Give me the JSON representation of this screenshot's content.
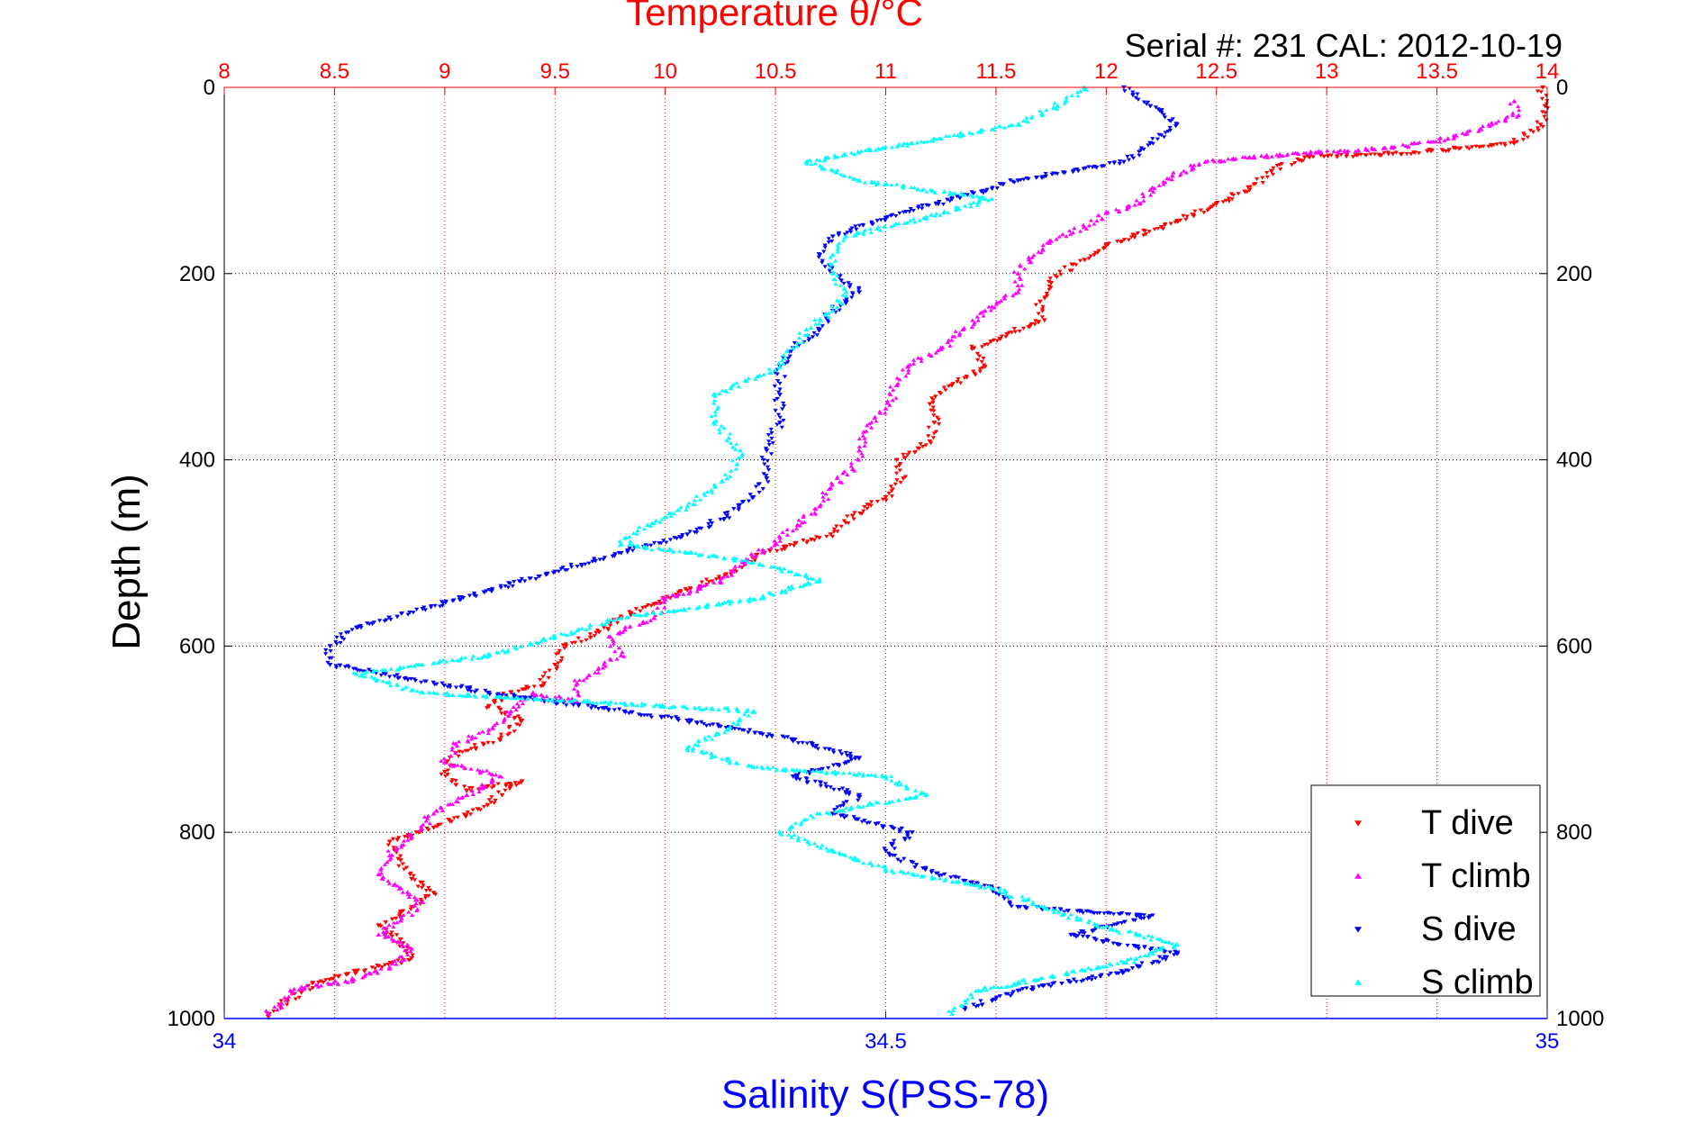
{
  "chart_data": {
    "type": "scatter",
    "title": "Temperature θ/°C",
    "subtitle": "Serial #: 231  CAL: 2012-10-19",
    "ylabel": "Depth (m)",
    "top_axis": {
      "label": "Temperature θ/°C",
      "range": [
        8,
        14
      ],
      "ticks": [
        "8",
        "8.5",
        "9",
        "9.5",
        "10",
        "10.5",
        "11",
        "11.5",
        "12",
        "12.5",
        "13",
        "13.5",
        "14"
      ],
      "color": "#ff0000"
    },
    "bottom_axis": {
      "label": "Salinity S(PSS-78)",
      "range": [
        34,
        35
      ],
      "ticks": [
        "34",
        "34.5",
        "35"
      ],
      "color": "#0000ff"
    },
    "y_axis": {
      "range": [
        0,
        1000
      ],
      "reversed": true,
      "ticks": [
        "0",
        "200",
        "400",
        "600",
        "800",
        "1000"
      ]
    },
    "grid": true,
    "legend_position": "bottom-right",
    "series": [
      {
        "name": "T dive",
        "axis": "temperature",
        "color": "#ff0000",
        "marker": "triangle-down",
        "points": [
          [
            13.98,
            0
          ],
          [
            13.99,
            20
          ],
          [
            13.97,
            40
          ],
          [
            13.85,
            60
          ],
          [
            13.4,
            70
          ],
          [
            12.9,
            75
          ],
          [
            12.75,
            90
          ],
          [
            12.65,
            110
          ],
          [
            12.5,
            125
          ],
          [
            12.25,
            150
          ],
          [
            12.0,
            170
          ],
          [
            11.85,
            190
          ],
          [
            11.75,
            210
          ],
          [
            11.7,
            230
          ],
          [
            11.72,
            250
          ],
          [
            11.55,
            265
          ],
          [
            11.4,
            280
          ],
          [
            11.45,
            300
          ],
          [
            11.3,
            320
          ],
          [
            11.2,
            340
          ],
          [
            11.22,
            360
          ],
          [
            11.2,
            380
          ],
          [
            11.05,
            400
          ],
          [
            11.08,
            420
          ],
          [
            11.0,
            440
          ],
          [
            10.85,
            460
          ],
          [
            10.75,
            480
          ],
          [
            10.45,
            500
          ],
          [
            10.3,
            520
          ],
          [
            10.1,
            540
          ],
          [
            9.95,
            555
          ],
          [
            9.8,
            570
          ],
          [
            9.7,
            585
          ],
          [
            9.55,
            600
          ],
          [
            9.5,
            620
          ],
          [
            9.45,
            640
          ],
          [
            9.3,
            650
          ],
          [
            9.2,
            665
          ],
          [
            9.35,
            680
          ],
          [
            9.25,
            700
          ],
          [
            9.05,
            715
          ],
          [
            9.0,
            735
          ],
          [
            9.1,
            755
          ],
          [
            9.35,
            745
          ],
          [
            9.15,
            775
          ],
          [
            8.95,
            795
          ],
          [
            8.75,
            810
          ],
          [
            8.8,
            830
          ],
          [
            8.85,
            850
          ],
          [
            8.95,
            865
          ],
          [
            8.85,
            880
          ],
          [
            8.7,
            900
          ],
          [
            8.8,
            915
          ],
          [
            8.85,
            935
          ],
          [
            8.6,
            950
          ],
          [
            8.4,
            962
          ],
          [
            8.35,
            972
          ],
          [
            8.25,
            985
          ],
          [
            8.2,
            998
          ]
        ]
      },
      {
        "name": "T climb",
        "axis": "temperature",
        "color": "#ff00ff",
        "marker": "triangle-up",
        "points": [
          [
            13.85,
            15
          ],
          [
            13.87,
            30
          ],
          [
            13.7,
            45
          ],
          [
            13.55,
            55
          ],
          [
            13.3,
            65
          ],
          [
            12.95,
            70
          ],
          [
            12.65,
            75
          ],
          [
            12.45,
            80
          ],
          [
            12.3,
            95
          ],
          [
            12.2,
            110
          ],
          [
            12.15,
            125
          ],
          [
            12.0,
            135
          ],
          [
            11.9,
            150
          ],
          [
            11.75,
            165
          ],
          [
            11.65,
            185
          ],
          [
            11.6,
            200
          ],
          [
            11.6,
            220
          ],
          [
            11.45,
            240
          ],
          [
            11.35,
            260
          ],
          [
            11.25,
            280
          ],
          [
            11.1,
            300
          ],
          [
            11.05,
            320
          ],
          [
            11.0,
            345
          ],
          [
            10.9,
            370
          ],
          [
            10.88,
            390
          ],
          [
            10.85,
            410
          ],
          [
            10.75,
            430
          ],
          [
            10.7,
            450
          ],
          [
            10.6,
            470
          ],
          [
            10.5,
            490
          ],
          [
            10.35,
            510
          ],
          [
            10.25,
            530
          ],
          [
            10.0,
            550
          ],
          [
            9.95,
            570
          ],
          [
            9.75,
            590
          ],
          [
            9.8,
            610
          ],
          [
            9.6,
            640
          ],
          [
            9.6,
            660
          ],
          [
            9.4,
            650
          ],
          [
            9.3,
            670
          ],
          [
            9.2,
            690
          ],
          [
            9.05,
            705
          ],
          [
            9.0,
            725
          ],
          [
            9.25,
            740
          ],
          [
            9.1,
            760
          ],
          [
            8.95,
            780
          ],
          [
            8.85,
            805
          ],
          [
            8.75,
            825
          ],
          [
            8.7,
            845
          ],
          [
            8.8,
            860
          ],
          [
            8.9,
            875
          ],
          [
            8.8,
            895
          ],
          [
            8.7,
            910
          ],
          [
            8.85,
            925
          ],
          [
            8.75,
            945
          ],
          [
            8.55,
            960
          ],
          [
            8.3,
            970
          ],
          [
            8.25,
            985
          ],
          [
            8.2,
            995
          ]
        ]
      },
      {
        "name": "S dive",
        "axis": "salinity",
        "color": "#0000ff",
        "marker": "triangle-down",
        "points": [
          [
            34.68,
            0
          ],
          [
            34.7,
            20
          ],
          [
            34.72,
            40
          ],
          [
            34.7,
            60
          ],
          [
            34.68,
            80
          ],
          [
            34.6,
            100
          ],
          [
            34.55,
            120
          ],
          [
            34.5,
            140
          ],
          [
            34.46,
            160
          ],
          [
            34.45,
            180
          ],
          [
            34.46,
            200
          ],
          [
            34.48,
            220
          ],
          [
            34.46,
            240
          ],
          [
            34.45,
            260
          ],
          [
            34.43,
            280
          ],
          [
            34.42,
            300
          ],
          [
            34.42,
            330
          ],
          [
            34.42,
            360
          ],
          [
            34.41,
            390
          ],
          [
            34.41,
            420
          ],
          [
            34.4,
            440
          ],
          [
            34.38,
            460
          ],
          [
            34.35,
            480
          ],
          [
            34.3,
            500
          ],
          [
            34.25,
            520
          ],
          [
            34.15,
            560
          ],
          [
            34.1,
            580
          ],
          [
            34.08,
            600
          ],
          [
            34.08,
            620
          ],
          [
            34.2,
            650
          ],
          [
            34.35,
            680
          ],
          [
            34.43,
            700
          ],
          [
            34.48,
            720
          ],
          [
            34.43,
            740
          ],
          [
            34.48,
            760
          ],
          [
            34.46,
            780
          ],
          [
            34.52,
            800
          ],
          [
            34.5,
            820
          ],
          [
            34.53,
            840
          ],
          [
            34.58,
            860
          ],
          [
            34.6,
            880
          ],
          [
            34.7,
            890
          ],
          [
            34.64,
            910
          ],
          [
            34.72,
            930
          ],
          [
            34.68,
            950
          ],
          [
            34.6,
            970
          ],
          [
            34.56,
            990
          ]
        ]
      },
      {
        "name": "S climb",
        "axis": "salinity",
        "color": "#00ffff",
        "marker": "triangle-up",
        "points": [
          [
            34.65,
            0
          ],
          [
            34.63,
            20
          ],
          [
            34.6,
            40
          ],
          [
            34.52,
            60
          ],
          [
            34.44,
            80
          ],
          [
            34.48,
            100
          ],
          [
            34.58,
            120
          ],
          [
            34.53,
            140
          ],
          [
            34.47,
            160
          ],
          [
            34.46,
            180
          ],
          [
            34.46,
            200
          ],
          [
            34.47,
            220
          ],
          [
            34.46,
            240
          ],
          [
            34.44,
            260
          ],
          [
            34.43,
            280
          ],
          [
            34.42,
            300
          ],
          [
            34.37,
            330
          ],
          [
            34.37,
            360
          ],
          [
            34.39,
            390
          ],
          [
            34.38,
            420
          ],
          [
            34.35,
            450
          ],
          [
            34.32,
            470
          ],
          [
            34.3,
            490
          ],
          [
            34.4,
            510
          ],
          [
            34.45,
            530
          ],
          [
            34.4,
            550
          ],
          [
            34.3,
            570
          ],
          [
            34.25,
            590
          ],
          [
            34.2,
            610
          ],
          [
            34.1,
            630
          ],
          [
            34.15,
            650
          ],
          [
            34.4,
            670
          ],
          [
            34.38,
            690
          ],
          [
            34.35,
            710
          ],
          [
            34.4,
            730
          ],
          [
            34.5,
            740
          ],
          [
            34.53,
            760
          ],
          [
            34.45,
            780
          ],
          [
            34.42,
            800
          ],
          [
            34.46,
            820
          ],
          [
            34.5,
            840
          ],
          [
            34.58,
            860
          ],
          [
            34.62,
            880
          ],
          [
            34.66,
            900
          ],
          [
            34.72,
            920
          ],
          [
            34.68,
            940
          ],
          [
            34.57,
            970
          ],
          [
            34.55,
            995
          ]
        ]
      }
    ]
  }
}
